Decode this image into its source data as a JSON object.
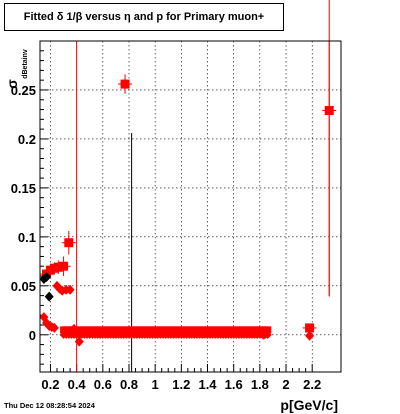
{
  "title": "Fitted δ 1/β versus η and p for Primary muon+",
  "footer": "Thu Dec 12 08:28:54 2024",
  "chart_data": {
    "type": "scatter",
    "title": "Fitted δ 1/β versus η and p for Primary muon+",
    "xlabel": "p[GeV/c]",
    "ylabel": "σ dBetainv",
    "xlim": [
      0.12,
      2.42
    ],
    "ylim": [
      -0.038,
      0.3
    ],
    "xticks": [
      "0.2",
      "0.4",
      "0.6",
      "0.8",
      "1",
      "1.2",
      "1.4",
      "1.6",
      "1.8",
      "2",
      "2.2"
    ],
    "yticks": [
      "0",
      "0.05",
      "0.1",
      "0.15",
      "0.2",
      "0.25"
    ],
    "grid": true,
    "series": [
      {
        "color": "#ff0000",
        "marker": "square",
        "points": [
          {
            "x": 0.17,
            "y": 0.062,
            "yerr": 0.004
          },
          {
            "x": 0.2,
            "y": 0.066,
            "yerr": 0.005
          },
          {
            "x": 0.23,
            "y": 0.068,
            "yerr": 0.006
          },
          {
            "x": 0.26,
            "y": 0.069,
            "yerr": 0.007
          },
          {
            "x": 0.3,
            "y": 0.07,
            "yerr": 0.01
          },
          {
            "x": 0.34,
            "y": 0.094,
            "yerr": 0.012
          },
          {
            "x": 0.77,
            "y": 0.256,
            "yerr": 0.01
          },
          {
            "x": 2.18,
            "y": 0.007,
            "yerr": 0.003
          },
          {
            "x": 2.33,
            "y": 0.229,
            "yerr": 0.19
          }
        ]
      },
      {
        "color": "#ff0000",
        "marker": "diamond",
        "points": [
          {
            "x": 0.15,
            "y": 0.018
          },
          {
            "x": 0.17,
            "y": 0.012
          },
          {
            "x": 0.19,
            "y": 0.009
          },
          {
            "x": 0.21,
            "y": 0.008
          },
          {
            "x": 0.23,
            "y": 0.007
          },
          {
            "x": 0.25,
            "y": 0.05
          },
          {
            "x": 0.27,
            "y": 0.047
          },
          {
            "x": 0.29,
            "y": 0.045
          },
          {
            "x": 0.32,
            "y": 0.046
          },
          {
            "x": 0.35,
            "y": 0.046
          },
          {
            "x": 0.38,
            "y": 0.006
          },
          {
            "x": 0.42,
            "y": -0.007
          },
          {
            "x": 1.83,
            "y": 0.0
          },
          {
            "x": 2.18,
            "y": -0.001
          }
        ]
      },
      {
        "color": "#000000",
        "marker": "diamond",
        "points": [
          {
            "x": 0.15,
            "y": 0.057
          },
          {
            "x": 0.17,
            "y": 0.059
          },
          {
            "x": 0.19,
            "y": 0.039
          }
        ]
      }
    ],
    "band": {
      "x_from": 0.3,
      "x_to": 1.86,
      "y": 0.005,
      "color": "#ff0000"
    },
    "vertical_lines": [
      {
        "x": 0.4,
        "y_from": -0.038,
        "y_to": 0.3,
        "color": "#ff0000"
      },
      {
        "x": 0.82,
        "y_from": -0.038,
        "y_to": 0.206,
        "color": "#000000"
      },
      {
        "x": 2.33,
        "y_from": 0.04,
        "y_to": 0.3,
        "color": "#ff0000"
      }
    ]
  }
}
